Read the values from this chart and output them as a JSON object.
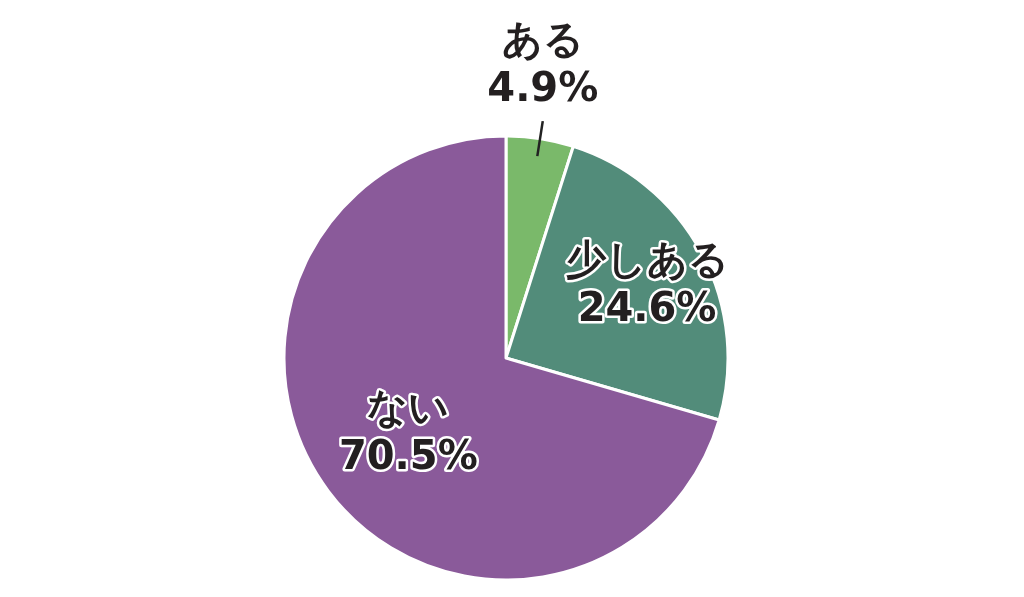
{
  "chart_data": {
    "type": "pie",
    "categories": [
      "ある",
      "少しある",
      "ない"
    ],
    "values": [
      4.9,
      24.6,
      70.5
    ],
    "colors": [
      "#7ab96a",
      "#528c7a",
      "#8a5a9a"
    ],
    "value_labels": [
      "4.9%",
      "24.6%",
      "70.5%"
    ]
  }
}
